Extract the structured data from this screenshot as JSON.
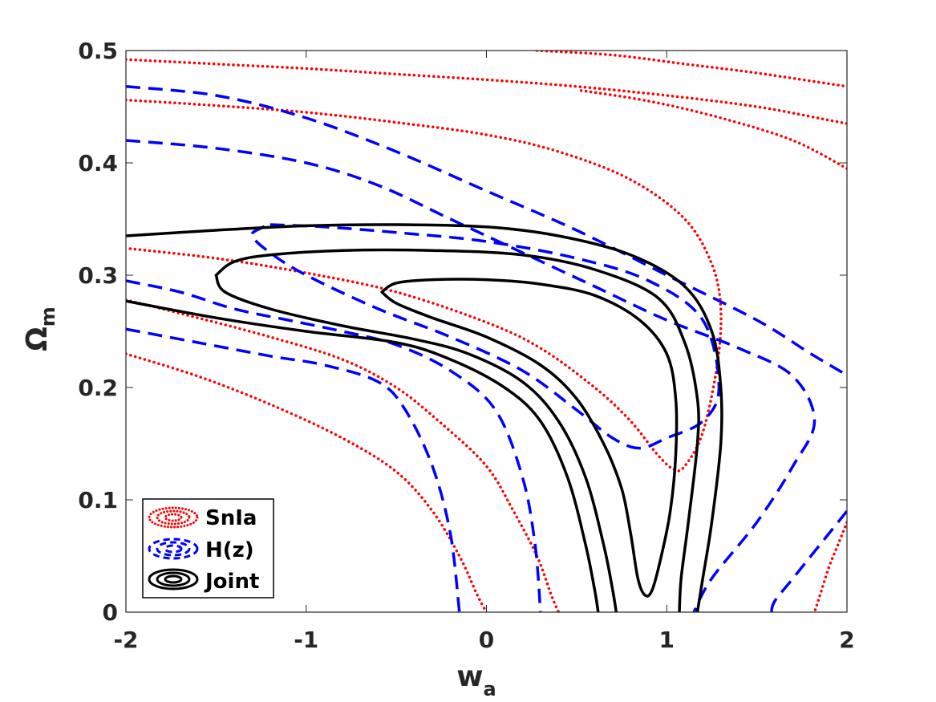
{
  "chart_data": {
    "type": "line",
    "xlabel": "w",
    "xlabel_sub": "a",
    "ylabel": "Ω",
    "ylabel_sub": "m",
    "xlim": [
      -2,
      2
    ],
    "ylim": [
      0,
      0.5
    ],
    "xticks": [
      -2,
      -1,
      0,
      1,
      2
    ],
    "xtick_labels": [
      "-2",
      "-1",
      "0",
      "1",
      "2"
    ],
    "yticks": [
      0,
      0.1,
      0.2,
      0.3,
      0.4,
      0.5
    ],
    "ytick_labels": [
      "0",
      "0.1",
      "0.2",
      "0.3",
      "0.4",
      "0.5"
    ],
    "grid": false,
    "legend_position": "bottom-left",
    "colors": {
      "snia": "#ff0000",
      "hz": "#0000ff",
      "joint": "#000000",
      "axes": "#262626"
    },
    "legend": [
      {
        "label": "SnIa",
        "series": "snia"
      },
      {
        "label": "H(z)",
        "series": "hz"
      },
      {
        "label": "Joint",
        "series": "joint"
      }
    ],
    "series": [
      {
        "name": "SnIa",
        "key": "snia",
        "style": "dotted",
        "contours": [
          [
            [
              -2,
              0.492
            ],
            [
              -1.5,
              0.488
            ],
            [
              -1,
              0.484
            ],
            [
              -0.5,
              0.479
            ],
            [
              0,
              0.474
            ],
            [
              0.5,
              0.468
            ],
            [
              1,
              0.46
            ],
            [
              1.5,
              0.45
            ],
            [
              1.9,
              0.438
            ],
            [
              2,
              0.435
            ]
          ],
          [
            [
              0.28,
              0.5
            ],
            [
              0.7,
              0.496
            ],
            [
              1.1,
              0.488
            ],
            [
              1.5,
              0.48
            ],
            [
              2,
              0.468
            ]
          ],
          [
            [
              -2,
              0.456
            ],
            [
              -1.5,
              0.451
            ],
            [
              -1,
              0.445
            ],
            [
              -0.5,
              0.436
            ],
            [
              0,
              0.425
            ],
            [
              0.4,
              0.41
            ],
            [
              0.8,
              0.385
            ],
            [
              1.1,
              0.35
            ],
            [
              1.25,
              0.31
            ],
            [
              1.3,
              0.27
            ],
            [
              1.28,
              0.22
            ],
            [
              1.2,
              0.16
            ],
            [
              1.1,
              0.13
            ],
            [
              1.04,
              0.127
            ],
            [
              0.95,
              0.14
            ],
            [
              0.8,
              0.17
            ],
            [
              0.6,
              0.2
            ],
            [
              0.3,
              0.235
            ],
            [
              0,
              0.258
            ],
            [
              -0.5,
              0.285
            ],
            [
              -1,
              0.302
            ],
            [
              -1.5,
              0.315
            ],
            [
              -2,
              0.324
            ]
          ],
          [
            [
              2,
              0.395
            ],
            [
              1.7,
              0.42
            ],
            [
              1.3,
              0.44
            ],
            [
              0.9,
              0.455
            ],
            [
              0.5,
              0.465
            ]
          ],
          [
            [
              -2,
              0.23
            ],
            [
              -1.6,
              0.21
            ],
            [
              -1.2,
              0.185
            ],
            [
              -0.8,
              0.155
            ],
            [
              -0.5,
              0.125
            ],
            [
              -0.3,
              0.09
            ],
            [
              -0.15,
              0.05
            ],
            [
              -0.05,
              0.015
            ],
            [
              0,
              0
            ]
          ],
          [
            [
              -2,
              0.278
            ],
            [
              -1.6,
              0.262
            ],
            [
              -1.2,
              0.245
            ],
            [
              -0.8,
              0.225
            ],
            [
              -0.5,
              0.2
            ],
            [
              -0.25,
              0.168
            ],
            [
              0,
              0.13
            ],
            [
              0.15,
              0.09
            ],
            [
              0.28,
              0.05
            ],
            [
              0.36,
              0.015
            ],
            [
              0.4,
              0
            ]
          ],
          [
            [
              2,
              0.08
            ],
            [
              1.95,
              0.06
            ],
            [
              1.9,
              0.04
            ],
            [
              1.85,
              0.015
            ],
            [
              1.82,
              0
            ]
          ]
        ]
      },
      {
        "name": "H(z)",
        "key": "hz",
        "style": "dashed",
        "contours": [
          [
            [
              -2,
              0.468
            ],
            [
              -1.5,
              0.46
            ],
            [
              -1,
              0.44
            ],
            [
              -0.5,
              0.41
            ],
            [
              0,
              0.375
            ],
            [
              0.5,
              0.34
            ],
            [
              1,
              0.3
            ],
            [
              1.5,
              0.26
            ],
            [
              1.8,
              0.23
            ],
            [
              2,
              0.211
            ]
          ],
          [
            [
              -2,
              0.42
            ],
            [
              -1.5,
              0.413
            ],
            [
              -1,
              0.4
            ],
            [
              -0.6,
              0.38
            ],
            [
              -0.2,
              0.35
            ],
            [
              0.2,
              0.32
            ],
            [
              0.6,
              0.29
            ],
            [
              1,
              0.26
            ],
            [
              1.4,
              0.235
            ],
            [
              1.7,
              0.21
            ],
            [
              1.82,
              0.17
            ],
            [
              1.7,
              0.13
            ],
            [
              1.5,
              0.08
            ],
            [
              1.25,
              0.03
            ],
            [
              1.15,
              0
            ]
          ],
          [
            [
              -1.2,
              0.345
            ],
            [
              -0.9,
              0.343
            ],
            [
              -0.5,
              0.338
            ],
            [
              0,
              0.33
            ],
            [
              0.5,
              0.315
            ],
            [
              0.9,
              0.295
            ],
            [
              1.2,
              0.26
            ],
            [
              1.29,
              0.2
            ],
            [
              1.2,
              0.17
            ],
            [
              1,
              0.155
            ],
            [
              0.85,
              0.146
            ],
            [
              0.7,
              0.155
            ],
            [
              0.5,
              0.18
            ],
            [
              0.2,
              0.215
            ],
            [
              -0.2,
              0.245
            ],
            [
              -0.6,
              0.27
            ],
            [
              -1,
              0.3
            ],
            [
              -1.2,
              0.32
            ],
            [
              -1.3,
              0.335
            ],
            [
              -1.25,
              0.342
            ],
            [
              -1.2,
              0.345
            ]
          ],
          [
            [
              -2,
              0.295
            ],
            [
              -1.7,
              0.285
            ],
            [
              -1.4,
              0.27
            ],
            [
              -1.1,
              0.26
            ],
            [
              -0.8,
              0.25
            ],
            [
              -0.5,
              0.238
            ],
            [
              -0.2,
              0.215
            ],
            [
              0.05,
              0.18
            ],
            [
              0.2,
              0.12
            ],
            [
              0.27,
              0.06
            ],
            [
              0.3,
              0
            ]
          ],
          [
            [
              -2,
              0.252
            ],
            [
              -1.6,
              0.24
            ],
            [
              -1.2,
              0.228
            ],
            [
              -0.9,
              0.22
            ],
            [
              -0.6,
              0.205
            ],
            [
              -0.45,
              0.18
            ],
            [
              -0.3,
              0.13
            ],
            [
              -0.2,
              0.07
            ],
            [
              -0.15,
              0
            ]
          ],
          [
            [
              2,
              0.09
            ],
            [
              1.85,
              0.06
            ],
            [
              1.7,
              0.03
            ],
            [
              1.6,
              0.01
            ],
            [
              1.58,
              0
            ]
          ]
        ]
      },
      {
        "name": "Joint",
        "key": "joint",
        "style": "solid",
        "contours": [
          [
            [
              -2,
              0.335
            ],
            [
              -1.5,
              0.34
            ],
            [
              -1,
              0.344
            ],
            [
              -0.5,
              0.345
            ],
            [
              0,
              0.343
            ],
            [
              0.4,
              0.335
            ],
            [
              0.8,
              0.318
            ],
            [
              1.1,
              0.29
            ],
            [
              1.25,
              0.25
            ],
            [
              1.3,
              0.2
            ],
            [
              1.3,
              0.15
            ],
            [
              1.25,
              0.08
            ],
            [
              1.2,
              0.03
            ],
            [
              1.17,
              0
            ]
          ],
          [
            [
              -2,
              0.277
            ],
            [
              -1.5,
              0.262
            ],
            [
              -1,
              0.25
            ],
            [
              -0.5,
              0.24
            ],
            [
              -0.2,
              0.225
            ],
            [
              0.1,
              0.2
            ],
            [
              0.3,
              0.17
            ],
            [
              0.45,
              0.12
            ],
            [
              0.55,
              0.06
            ],
            [
              0.6,
              0.02
            ],
            [
              0.62,
              0
            ]
          ],
          [
            [
              -1.5,
              0.3
            ],
            [
              -1.4,
              0.312
            ],
            [
              -1.2,
              0.318
            ],
            [
              -0.8,
              0.322
            ],
            [
              -0.3,
              0.322
            ],
            [
              0.2,
              0.318
            ],
            [
              0.6,
              0.305
            ],
            [
              0.95,
              0.28
            ],
            [
              1.1,
              0.24
            ],
            [
              1.17,
              0.19
            ],
            [
              1.17,
              0.15
            ],
            [
              1.12,
              0.08
            ],
            [
              1.08,
              0.03
            ],
            [
              1.07,
              0
            ]
          ],
          [
            [
              -1.5,
              0.3
            ],
            [
              -1.45,
              0.285
            ],
            [
              -1.2,
              0.27
            ],
            [
              -0.8,
              0.255
            ],
            [
              -0.4,
              0.243
            ],
            [
              -0.1,
              0.23
            ],
            [
              0.2,
              0.205
            ],
            [
              0.4,
              0.17
            ],
            [
              0.55,
              0.12
            ],
            [
              0.65,
              0.06
            ],
            [
              0.7,
              0.02
            ],
            [
              0.72,
              0
            ]
          ],
          [
            [
              -0.58,
              0.285
            ],
            [
              -0.5,
              0.293
            ],
            [
              -0.3,
              0.296
            ],
            [
              0,
              0.296
            ],
            [
              0.3,
              0.292
            ],
            [
              0.6,
              0.282
            ],
            [
              0.85,
              0.26
            ],
            [
              1,
              0.23
            ],
            [
              1.05,
              0.19
            ],
            [
              1.05,
              0.14
            ],
            [
              1.02,
              0.09
            ],
            [
              0.97,
              0.05
            ],
            [
              0.92,
              0.02
            ],
            [
              0.88,
              0.015
            ],
            [
              0.84,
              0.03
            ],
            [
              0.8,
              0.07
            ],
            [
              0.75,
              0.11
            ],
            [
              0.65,
              0.15
            ],
            [
              0.5,
              0.19
            ],
            [
              0.3,
              0.22
            ],
            [
              0,
              0.245
            ],
            [
              -0.3,
              0.262
            ],
            [
              -0.5,
              0.275
            ],
            [
              -0.58,
              0.285
            ]
          ]
        ]
      }
    ]
  }
}
